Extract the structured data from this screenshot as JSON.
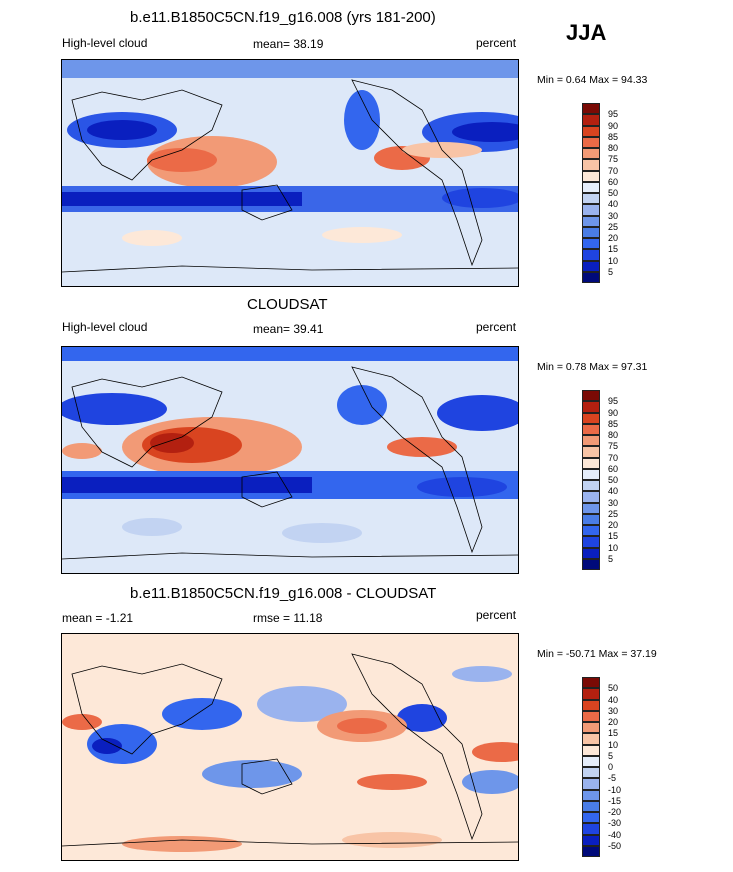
{
  "season": "JJA",
  "chart_data": [
    {
      "type": "heatmap",
      "title": "b.e11.B1850C5CN.f19_g16.008 (yrs 181-200)",
      "left_label": "High-level cloud",
      "mean_text": "mean=  38.19",
      "units": "percent",
      "minmax_text": "Min =   0.64 Max =  94.33",
      "colorbar_levels": [
        "5",
        "10",
        "15",
        "20",
        "25",
        "30",
        "40",
        "50",
        "60",
        "70",
        "75",
        "80",
        "85",
        "90",
        "95"
      ],
      "colorbar_colors": [
        "#000a7a",
        "#0a1fbf",
        "#1f44e0",
        "#3366ee",
        "#4a7de6",
        "#6e96ea",
        "#9ab3ee",
        "#c2d3f2",
        "#e6eefb",
        "#fde8d8",
        "#f8c4a6",
        "#f29a76",
        "#eb6a47",
        "#d94420",
        "#b32010",
        "#7a0a05"
      ],
      "mean": 38.19,
      "min": 0.64,
      "max": 94.33
    },
    {
      "type": "heatmap",
      "title": "CLOUDSAT",
      "left_label": "High-level cloud",
      "mean_text": "mean=  39.41",
      "units": "percent",
      "minmax_text": "Min =   0.78 Max =  97.31",
      "colorbar_levels": [
        "5",
        "10",
        "15",
        "20",
        "25",
        "30",
        "40",
        "50",
        "60",
        "70",
        "75",
        "80",
        "85",
        "90",
        "95"
      ],
      "colorbar_colors": [
        "#000a7a",
        "#0a1fbf",
        "#1f44e0",
        "#3366ee",
        "#4a7de6",
        "#6e96ea",
        "#9ab3ee",
        "#c2d3f2",
        "#e6eefb",
        "#fde8d8",
        "#f8c4a6",
        "#f29a76",
        "#eb6a47",
        "#d94420",
        "#b32010",
        "#7a0a05"
      ],
      "mean": 39.41,
      "min": 0.78,
      "max": 97.31
    },
    {
      "type": "heatmap",
      "title": "b.e11.B1850C5CN.f19_g16.008 - CLOUDSAT",
      "left_label": "mean =  -1.21",
      "mean_text": "rmse =  11.18",
      "units": "percent",
      "minmax_text": "Min = -50.71 Max =  37.19",
      "colorbar_levels": [
        "-50",
        "-40",
        "-30",
        "-20",
        "-15",
        "-10",
        "-5",
        "0",
        "5",
        "10",
        "15",
        "20",
        "30",
        "40",
        "50"
      ],
      "colorbar_colors": [
        "#000a7a",
        "#0a1fbf",
        "#1f44e0",
        "#3366ee",
        "#4a7de6",
        "#6e96ea",
        "#9ab3ee",
        "#c2d3f2",
        "#e6eefb",
        "#fde8d8",
        "#f8c4a6",
        "#f29a76",
        "#eb6a47",
        "#d94420",
        "#b32010",
        "#7a0a05"
      ],
      "mean": -1.21,
      "rmse": 11.18,
      "min": -50.71,
      "max": 37.19
    }
  ]
}
